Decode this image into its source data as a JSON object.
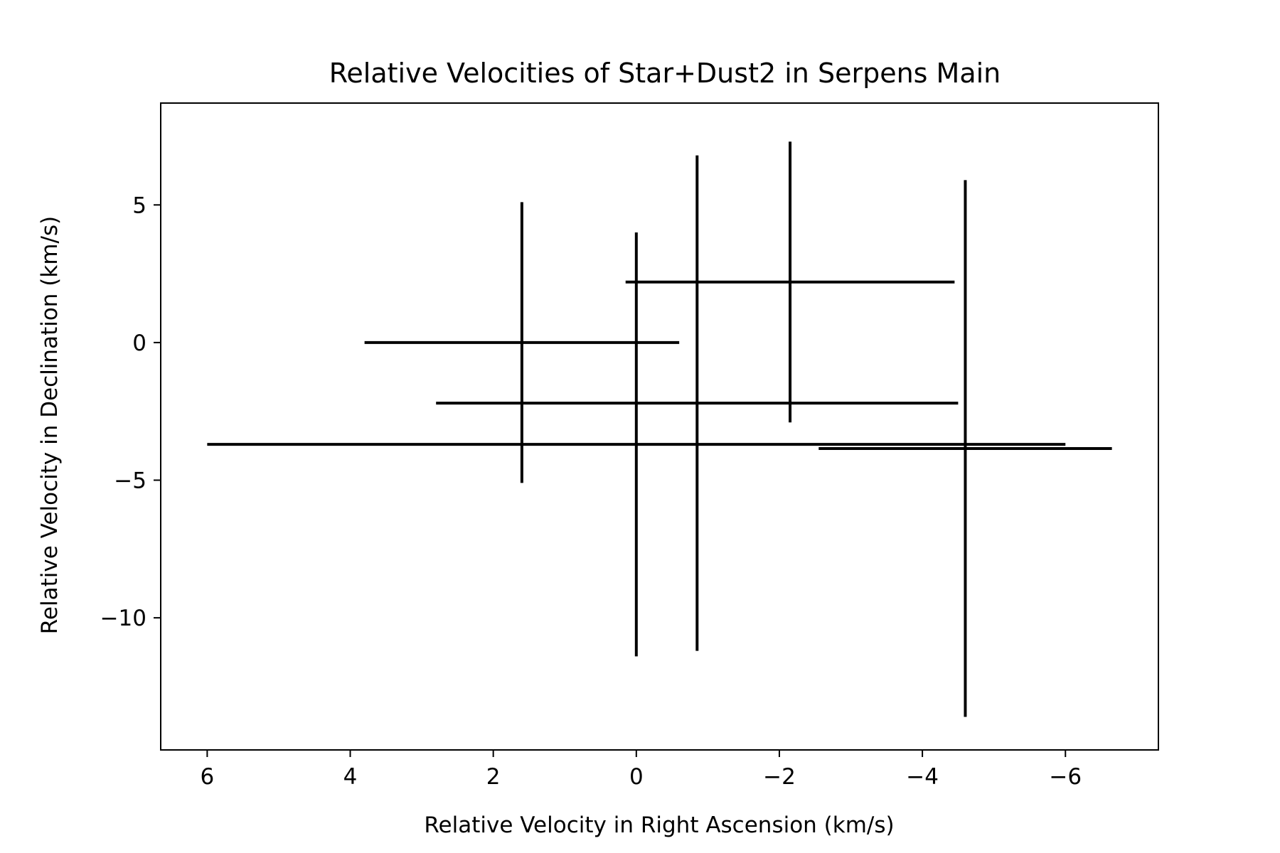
{
  "chart_data": {
    "type": "scatter",
    "title": "Relative Velocities of Star+Dust2 in Serpens Main",
    "xlabel": "Relative Velocity in Right Ascension (km/s)",
    "ylabel": "Relative Velocity in Declination (km/s)",
    "xlim": [
      6.65,
      -7.3
    ],
    "ylim": [
      -14.8,
      8.7
    ],
    "x_inverted": true,
    "xticks": [
      6,
      4,
      2,
      0,
      -2,
      -4,
      -6
    ],
    "xtick_labels": [
      "6",
      "4",
      "2",
      "0",
      "−2",
      "−4",
      "−6"
    ],
    "yticks": [
      5,
      0,
      -5,
      -10
    ],
    "ytick_labels": [
      "5",
      "0",
      "−5",
      "−10"
    ],
    "grid": false,
    "legend": false,
    "color": "#000000",
    "points": [
      {
        "x": 1.6,
        "y": 0.0,
        "xerr": 2.2,
        "yerr": 5.1
      },
      {
        "x": 0.0,
        "y": -3.7,
        "xerr": 6.0,
        "yerr": 7.7
      },
      {
        "x": -0.85,
        "y": -2.2,
        "xerr": 3.65,
        "yerr": 9.0
      },
      {
        "x": -2.15,
        "y": 2.2,
        "xerr": 2.3,
        "yerr": 5.1
      },
      {
        "x": -4.6,
        "y": -3.85,
        "xerr": 2.05,
        "yerr": 9.75
      }
    ]
  }
}
